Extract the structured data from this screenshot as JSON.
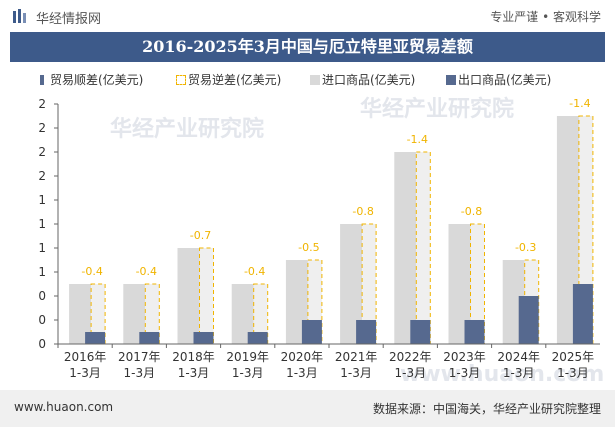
{
  "header": {
    "brand": "华经情报网",
    "tagline": "专业严谨 • 客观科学"
  },
  "chart_data": {
    "type": "bar",
    "title": "2016-2025年3月中国与厄立特里亚贸易差额",
    "xlabel": "",
    "ylabel": "",
    "categories": [
      "2016年\n1-3月",
      "2017年\n1-3月",
      "2018年\n1-3月",
      "2019年\n1-3月",
      "2020年\n1-3月",
      "2021年\n1-3月",
      "2022年\n1-3月",
      "2023年\n1-3月",
      "2024年\n1-3月",
      "2025年\n1-3月"
    ],
    "series": [
      {
        "name": "贸易顺差(亿美元)",
        "values": [
          0,
          0,
          0,
          0,
          0,
          0,
          0,
          0,
          0,
          0
        ]
      },
      {
        "name": "贸易逆差(亿美元)",
        "values": [
          -0.4,
          -0.4,
          -0.7,
          -0.4,
          -0.5,
          -0.8,
          -1.4,
          -0.8,
          -0.3,
          -1.4
        ]
      },
      {
        "name": "进口商品(亿美元)",
        "values": [
          0.5,
          0.5,
          0.8,
          0.5,
          0.7,
          1.0,
          1.6,
          1.0,
          0.7,
          1.9
        ]
      },
      {
        "name": "出口商品(亿美元)",
        "values": [
          0.1,
          0.1,
          0.1,
          0.1,
          0.2,
          0.2,
          0.2,
          0.2,
          0.4,
          0.5
        ]
      }
    ],
    "data_labels": [
      "-0.4",
      "-0.4",
      "-0.7",
      "-0.4",
      "-0.5",
      "-0.8",
      "-1.4",
      "-0.8",
      "-0.3",
      "-1.4"
    ],
    "y_tick_labels": [
      "0",
      "0",
      "0",
      "1",
      "1",
      "1",
      "1",
      "2",
      "2",
      "2",
      "2"
    ],
    "ylim": [
      0,
      2
    ],
    "legend_position": "top-left",
    "grid": false,
    "colors": {
      "import": "#d9d9d9",
      "export": "#56698f",
      "deficit_border": "#f0b400",
      "deficit_label": "#f0b400",
      "title_bg": "#3d5a8a"
    }
  },
  "watermarks": [
    "华经产业研究院",
    "www.huaon.com"
  ],
  "footer": {
    "site": "www.huaon.com",
    "source": "数据来源：中国海关，华经产业研究院整理"
  }
}
